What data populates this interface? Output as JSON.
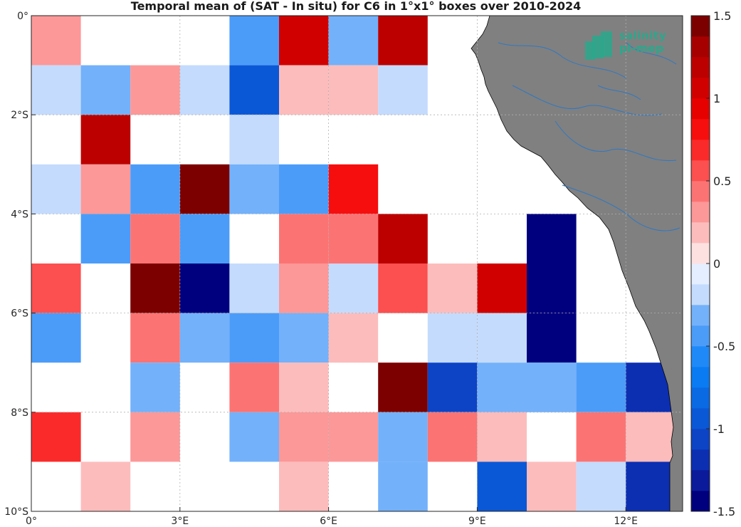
{
  "chart_data": {
    "type": "heatmap",
    "title": "Temporal mean of (SAT - In situ) for C6 in 1°x1° boxes over 2010-2024",
    "x_ticks": [
      {
        "value": 0,
        "label": "0°"
      },
      {
        "value": 3,
        "label": "3°E"
      },
      {
        "value": 6,
        "label": "6°E"
      },
      {
        "value": 9,
        "label": "9°E"
      },
      {
        "value": 12,
        "label": "12°E"
      }
    ],
    "y_ticks": [
      {
        "value": 0,
        "label": "0°"
      },
      {
        "value": -2,
        "label": "2°S"
      },
      {
        "value": -4,
        "label": "4°S"
      },
      {
        "value": -6,
        "label": "6°S"
      },
      {
        "value": -8,
        "label": "8°S"
      },
      {
        "value": -10,
        "label": "10°S"
      }
    ],
    "xlim": [
      0,
      13.2
    ],
    "ylim": [
      -10,
      0
    ],
    "grid": true,
    "colorbar": {
      "range": [
        -1.5,
        1.5
      ],
      "levels": 24,
      "tick_labels": [
        {
          "value": 1.5,
          "label": "1.5"
        },
        {
          "value": 1,
          "label": "1"
        },
        {
          "value": 0.5,
          "label": "0.5"
        },
        {
          "value": 0,
          "label": "0"
        },
        {
          "value": -0.5,
          "label": "-0.5"
        },
        {
          "value": -1,
          "label": "-1"
        },
        {
          "value": -1.5,
          "label": "-1.5"
        }
      ]
    },
    "cell_size_deg": 1,
    "cells": [
      {
        "lon": 0,
        "lat": 0,
        "value": 0.25
      },
      {
        "lon": 4,
        "lat": 0,
        "value": -0.5
      },
      {
        "lon": 5,
        "lat": 0,
        "value": 1.0
      },
      {
        "lon": 6,
        "lat": 0,
        "value": -0.35
      },
      {
        "lon": 7,
        "lat": 0,
        "value": 1.15
      },
      {
        "lon": 0,
        "lat": -1,
        "value": -0.15
      },
      {
        "lon": 1,
        "lat": -1,
        "value": -0.3
      },
      {
        "lon": 2,
        "lat": -1,
        "value": 0.25
      },
      {
        "lon": 3,
        "lat": -1,
        "value": -0.15
      },
      {
        "lon": 4,
        "lat": -1,
        "value": -0.9
      },
      {
        "lon": 5,
        "lat": -1,
        "value": 0.15
      },
      {
        "lon": 6,
        "lat": -1,
        "value": 0.15
      },
      {
        "lon": 7,
        "lat": -1,
        "value": -0.25
      },
      {
        "lon": 1,
        "lat": -2,
        "value": 1.15
      },
      {
        "lon": 4,
        "lat": -2,
        "value": -0.15
      },
      {
        "lon": 0,
        "lat": -3,
        "value": -0.15
      },
      {
        "lon": 1,
        "lat": -3,
        "value": 0.25
      },
      {
        "lon": 2,
        "lat": -3,
        "value": -0.5
      },
      {
        "lon": 3,
        "lat": -3,
        "value": 1.4
      },
      {
        "lon": 4,
        "lat": -3,
        "value": -0.3
      },
      {
        "lon": 5,
        "lat": -3,
        "value": -0.4
      },
      {
        "lon": 6,
        "lat": -3,
        "value": 0.8
      },
      {
        "lon": 1,
        "lat": -4,
        "value": -0.4
      },
      {
        "lon": 2,
        "lat": -4,
        "value": 0.4
      },
      {
        "lon": 3,
        "lat": -4,
        "value": -0.5
      },
      {
        "lon": 5,
        "lat": -4,
        "value": 0.4
      },
      {
        "lon": 6,
        "lat": -4,
        "value": 0.4
      },
      {
        "lon": 7,
        "lat": -4,
        "value": 1.15
      },
      {
        "lon": 10,
        "lat": -4,
        "value": -1.5
      },
      {
        "lon": 0,
        "lat": -5,
        "value": 0.6
      },
      {
        "lon": 2,
        "lat": -5,
        "value": 1.5
      },
      {
        "lon": 3,
        "lat": -5,
        "value": -1.5
      },
      {
        "lon": 4,
        "lat": -5,
        "value": -0.15
      },
      {
        "lon": 5,
        "lat": -5,
        "value": 0.25
      },
      {
        "lon": 6,
        "lat": -5,
        "value": -0.15
      },
      {
        "lon": 7,
        "lat": -5,
        "value": 0.6
      },
      {
        "lon": 8,
        "lat": -5,
        "value": 0.15
      },
      {
        "lon": 9,
        "lat": -5,
        "value": 1.0
      },
      {
        "lon": 10,
        "lat": -5,
        "value": -1.5
      },
      {
        "lon": 0,
        "lat": -6,
        "value": -0.5
      },
      {
        "lon": 2,
        "lat": -6,
        "value": 0.4
      },
      {
        "lon": 3,
        "lat": -6,
        "value": -0.3
      },
      {
        "lon": 4,
        "lat": -6,
        "value": -0.4
      },
      {
        "lon": 5,
        "lat": -6,
        "value": -0.3
      },
      {
        "lon": 6,
        "lat": -6,
        "value": 0.15
      },
      {
        "lon": 8,
        "lat": -6,
        "value": -0.15
      },
      {
        "lon": 9,
        "lat": -6,
        "value": -0.15
      },
      {
        "lon": 10,
        "lat": -6,
        "value": -1.5
      },
      {
        "lon": 2,
        "lat": -7,
        "value": -0.3
      },
      {
        "lon": 4,
        "lat": -7,
        "value": 0.4
      },
      {
        "lon": 5,
        "lat": -7,
        "value": 0.15
      },
      {
        "lon": 7,
        "lat": -7,
        "value": 1.45
      },
      {
        "lon": 8,
        "lat": -7,
        "value": -1.1
      },
      {
        "lon": 9,
        "lat": -7,
        "value": -0.3
      },
      {
        "lon": 10,
        "lat": -7,
        "value": -0.3
      },
      {
        "lon": 11,
        "lat": -7,
        "value": -0.4
      },
      {
        "lon": 12,
        "lat": -7,
        "value": -1.2
      },
      {
        "lon": 0,
        "lat": -8,
        "value": 0.7
      },
      {
        "lon": 2,
        "lat": -8,
        "value": 0.25
      },
      {
        "lon": 4,
        "lat": -8,
        "value": -0.3
      },
      {
        "lon": 5,
        "lat": -8,
        "value": 0.25
      },
      {
        "lon": 6,
        "lat": -8,
        "value": 0.25
      },
      {
        "lon": 7,
        "lat": -8,
        "value": -0.3
      },
      {
        "lon": 8,
        "lat": -8,
        "value": 0.4
      },
      {
        "lon": 9,
        "lat": -8,
        "value": 0.15
      },
      {
        "lon": 11,
        "lat": -8,
        "value": 0.4
      },
      {
        "lon": 12,
        "lat": -8,
        "value": 0.15
      },
      {
        "lon": 1,
        "lat": -9,
        "value": 0.15
      },
      {
        "lon": 5,
        "lat": -9,
        "value": 0.15
      },
      {
        "lon": 7,
        "lat": -9,
        "value": -0.3
      },
      {
        "lon": 9,
        "lat": -9,
        "value": -0.9
      },
      {
        "lon": 10,
        "lat": -9,
        "value": 0.15
      },
      {
        "lon": 11,
        "lat": -9,
        "value": -0.15
      },
      {
        "lon": 12,
        "lat": -9,
        "value": -1.2
      }
    ]
  },
  "logo": {
    "line1": "salinity",
    "line2": "pi-mep"
  },
  "colors": {
    "land": "#808080",
    "river": "#2e78c2",
    "grid": "#b0b0b0",
    "logo": "#2aa88c"
  }
}
